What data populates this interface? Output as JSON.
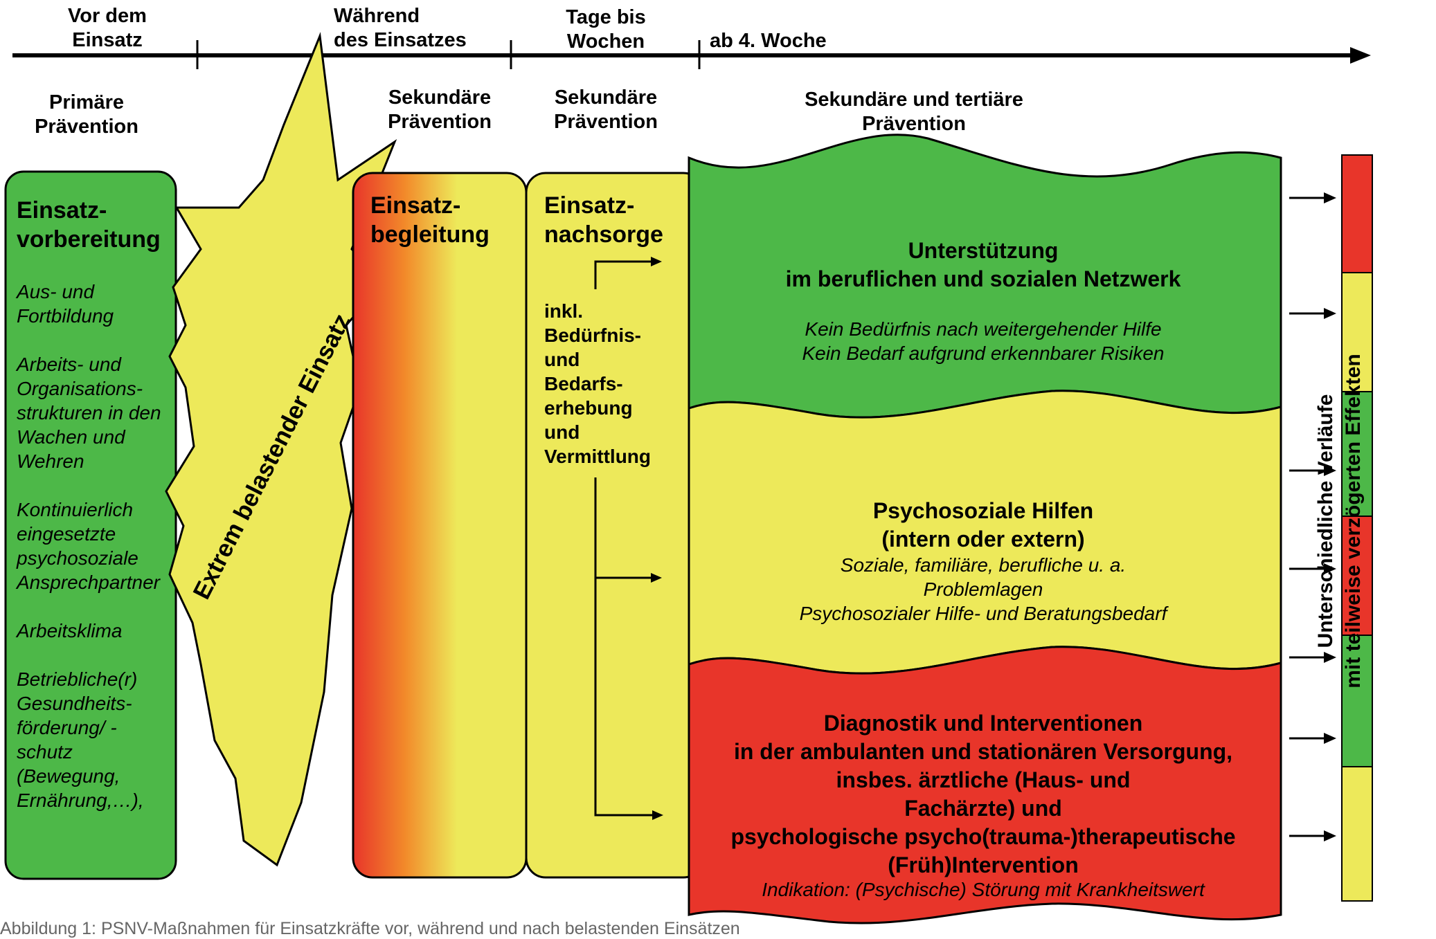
{
  "timeline": {
    "phases": [
      "Vor dem\nEinsatz",
      "Während\ndes Einsatzes",
      "Tage bis\nWochen",
      "ab 4. Woche"
    ]
  },
  "prevention": {
    "primary": "Primäre\nPrävention",
    "secondary_during": "Sekundäre\nPrävention",
    "secondary_after": "Sekundäre\nPrävention",
    "secondary_tertiary": "Sekundäre und tertiäre\nPrävention"
  },
  "preparation": {
    "title": "Einsatz-\nvorbereitung",
    "items": [
      "Aus- und\nFortbildung",
      "Arbeits- und\nOrganisations-\nstrukturen in den\nWachen und\nWehren",
      "Kontinuierlich\neingesetzte\npsychosoziale\nAnsprechpartner",
      "Arbeitsklima",
      "Betriebliche(r)\nGesundheits-\nförderung/ -\nschutz\n(Bewegung,\nErnährung,…),"
    ]
  },
  "burst": {
    "label": "Extrem belastender Einsatz"
  },
  "accompaniment": {
    "title": "Einsatz-\nbegleitung"
  },
  "aftercare": {
    "title": "Einsatz-\nnachsorge",
    "text": "inkl.\nBedürfnis-\nund\nBedarfs-\nerhebung\nund\nVermittlung"
  },
  "network": {
    "title": "Unterstützung\nim beruflichen und sozialen Netzwerk",
    "lines": [
      "Kein Bedürfnis nach weitergehender Hilfe",
      "Kein Bedarf aufgrund erkennbarer Risiken"
    ]
  },
  "psychosocial": {
    "title": "Psychosoziale Hilfen\n(intern oder extern)",
    "lines": [
      "Soziale, familiäre, berufliche u. a.",
      "Problemlagen",
      "Psychosozialer Hilfe- und Beratungsbedarf"
    ]
  },
  "diagnostics": {
    "title": "Diagnostik und Interventionen\nin der ambulanten und stationären Versorgung,\ninsbes. ärztliche (Haus- und\nFachärzte) und\npsychologische psycho(trauma-)therapeutische\n(Früh)Intervention",
    "indication": "Indikation: (Psychische) Störung mit Krankheitswert"
  },
  "outcomes": {
    "label": "Unterschiedliche Verläufe\nmit teilweise verzögerten Effekten",
    "segments": [
      "red",
      "yellow",
      "green",
      "red",
      "green",
      "yellow"
    ]
  },
  "colors": {
    "green": "#4db848",
    "yellow": "#ede95a",
    "red": "#e8352a",
    "orange": "#f4a52a"
  },
  "caption": "Abbildung 1: PSNV-Maßnahmen für Einsatzkräfte vor, während und nach belastenden Einsätzen"
}
